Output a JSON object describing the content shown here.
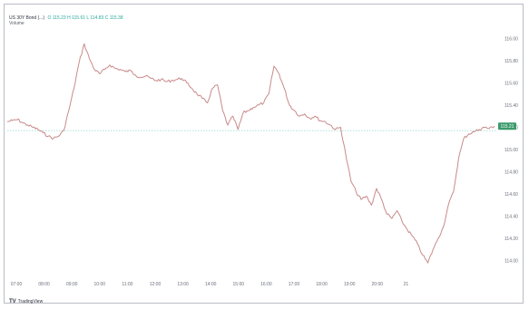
{
  "header": {
    "symbol": "US 30Y Bond (...)",
    "ohlc": "O 115.23 H 115.61 L 114.83 C 115.38",
    "volume": "Volume"
  },
  "attribution": {
    "logo": "TV",
    "text": "TradingView"
  },
  "colors": {
    "line": "#c98a8a",
    "baseline": "#8fd6d0",
    "last_price_tag": "#3c9a6b",
    "axis_text": "#6b6f7a",
    "frame": "#b9bcc5"
  },
  "chart_data": {
    "type": "line",
    "title": "",
    "xlabel": "",
    "ylabel": "",
    "grid": false,
    "x_tick_labels": [
      "07:00",
      "08:00",
      "09:00",
      "10:00",
      "11:00",
      "12:00",
      "13:00",
      "14:00",
      "15:00",
      "16:00",
      "17:00",
      "18:00",
      "19:00",
      "20:00",
      "21"
    ],
    "y_tick_labels": [
      "116.00",
      "115.80",
      "115.60",
      "115.40",
      "115.20",
      "115.00",
      "114.80",
      "114.60",
      "114.40",
      "114.20",
      "114.00"
    ],
    "ylim": [
      113.9,
      116.1
    ],
    "baseline_value": 115.17,
    "last_value_label": "115.21",
    "series": [
      {
        "values": [
          115.25,
          115.26,
          115.27,
          115.24,
          115.22,
          115.2,
          115.18,
          115.15,
          115.12,
          115.1,
          115.12,
          115.17,
          115.35,
          115.55,
          115.78,
          115.95,
          115.82,
          115.72,
          115.68,
          115.72,
          115.76,
          115.73,
          115.72,
          115.7,
          115.71,
          115.67,
          115.65,
          115.66,
          115.64,
          115.62,
          115.63,
          115.61,
          115.62,
          115.63,
          115.64,
          115.6,
          115.55,
          115.5,
          115.46,
          115.42,
          115.55,
          115.58,
          115.35,
          115.22,
          115.3,
          115.18,
          115.33,
          115.35,
          115.38,
          115.4,
          115.42,
          115.5,
          115.75,
          115.68,
          115.55,
          115.4,
          115.35,
          115.3,
          115.32,
          115.28,
          115.3,
          115.26,
          115.25,
          115.22,
          115.18,
          115.2,
          114.95,
          114.72,
          114.62,
          114.55,
          114.58,
          114.5,
          114.65,
          114.55,
          114.42,
          114.38,
          114.45,
          114.35,
          114.28,
          114.22,
          114.15,
          114.05,
          113.98,
          114.1,
          114.2,
          114.3,
          114.5,
          114.62,
          114.92,
          115.1,
          115.14,
          115.16,
          115.18,
          115.2,
          115.19,
          115.21
        ]
      }
    ]
  }
}
